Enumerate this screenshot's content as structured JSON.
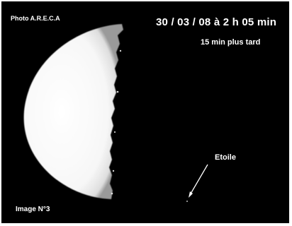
{
  "photo": {
    "credit": "Photo A.R.E.C.A",
    "datetime": "30 / 03 / 08 à 2 h 05 min",
    "later_note": "15 min plus tard",
    "star_label": "Etoile",
    "image_number": "Image N°3"
  },
  "colors": {
    "sky": "#000000",
    "moon": "#f4f4f4",
    "text": "#ffffff"
  }
}
